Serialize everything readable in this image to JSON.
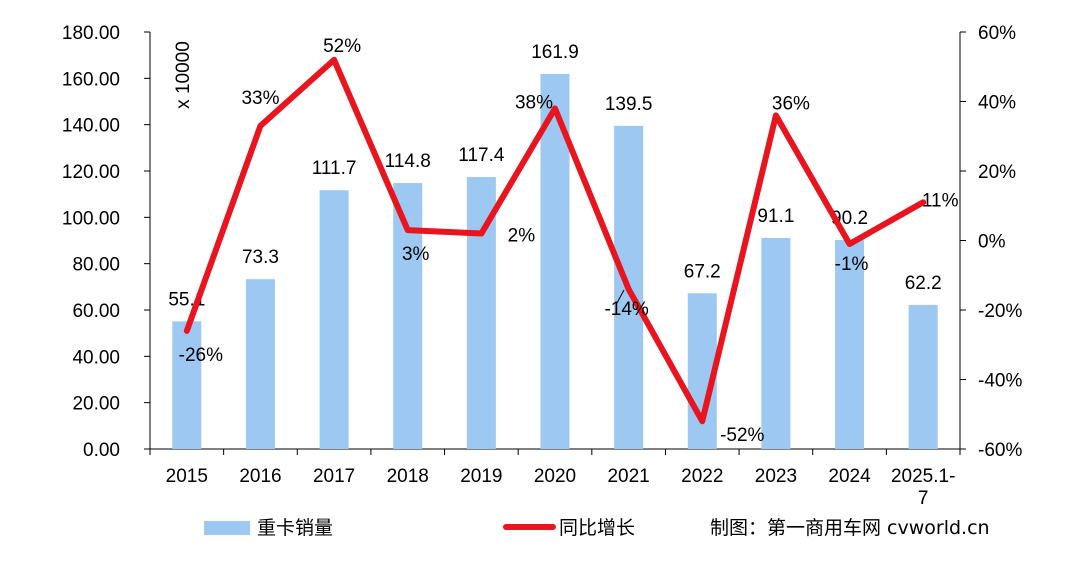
{
  "chart_data": {
    "type": "bar+line",
    "categories": [
      "2015",
      "2016",
      "2017",
      "2018",
      "2019",
      "2020",
      "2021",
      "2022",
      "2023",
      "2024",
      "2025.1-\n7"
    ],
    "series": [
      {
        "name": "重卡销量",
        "type": "bar",
        "axis": "left",
        "color": "#9DC8F2",
        "values": [
          55.1,
          73.3,
          111.7,
          114.8,
          117.4,
          161.9,
          139.5,
          67.2,
          91.1,
          90.2,
          62.2
        ],
        "labels": [
          "55.1",
          "73.3",
          "111.7",
          "114.8",
          "117.4",
          "161.9",
          "139.5",
          "67.2",
          "91.1",
          "90.2",
          "62.2"
        ]
      },
      {
        "name": "同比增长",
        "type": "line",
        "axis": "right",
        "color": "#E8141E",
        "values": [
          -26,
          33,
          52,
          3,
          2,
          38,
          -14,
          -52,
          36,
          -1,
          11
        ],
        "labels": [
          "-26%",
          "33%",
          "52%",
          "3%",
          "2%",
          "38%",
          "-14%",
          "-52%",
          "36%",
          "-1%",
          "11%"
        ]
      }
    ],
    "left_axis": {
      "min": 0,
      "max": 180,
      "step": 20,
      "tick_labels": [
        "0.00",
        "20.00",
        "40.00",
        "60.00",
        "80.00",
        "100.00",
        "120.00",
        "140.00",
        "160.00",
        "180.00"
      ],
      "unit_label": "x 10000"
    },
    "right_axis": {
      "min": -60,
      "max": 60,
      "step": 20,
      "tick_labels": [
        "-60%",
        "-40%",
        "-20%",
        "0%",
        "20%",
        "40%",
        "60%"
      ]
    },
    "legend": {
      "position": "bottom",
      "items": [
        "重卡销量",
        "同比增长"
      ]
    },
    "source_note": "制图：第一商用车网  cvworld.cn",
    "grid": false
  }
}
